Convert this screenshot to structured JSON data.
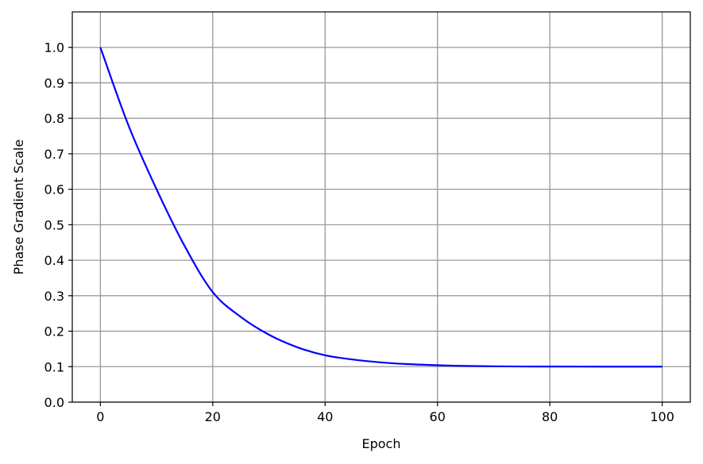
{
  "chart_data": {
    "type": "line",
    "title": "",
    "xlabel": "Epoch",
    "ylabel": "Phase Gradient Scale",
    "xlim": [
      -5,
      105
    ],
    "ylim": [
      0.0,
      1.1
    ],
    "grid": true,
    "x_ticks": [
      0,
      20,
      40,
      60,
      80,
      100
    ],
    "x_tick_labels": [
      "0",
      "20",
      "40",
      "60",
      "80",
      "100"
    ],
    "y_ticks": [
      0.0,
      0.1,
      0.2,
      0.3,
      0.4,
      0.5,
      0.6,
      0.7,
      0.8,
      0.9,
      1.0
    ],
    "y_tick_labels": [
      "0.0",
      "0.1",
      "0.2",
      "0.3",
      "0.4",
      "0.5",
      "0.6",
      "0.7",
      "0.8",
      "0.9",
      "1.0"
    ],
    "series": [
      {
        "color": "#0000ff",
        "x": [
          0,
          5,
          10,
          15,
          20,
          25,
          30,
          35,
          40,
          45,
          50,
          55,
          60,
          65,
          70,
          75,
          80,
          85,
          90,
          95,
          100
        ],
        "y": [
          1.0,
          0.78,
          0.6,
          0.44,
          0.31,
          0.24,
          0.19,
          0.155,
          0.132,
          0.12,
          0.112,
          0.107,
          0.104,
          0.102,
          0.101,
          0.1005,
          0.1003,
          0.1002,
          0.1001,
          0.1,
          0.1
        ]
      }
    ]
  }
}
